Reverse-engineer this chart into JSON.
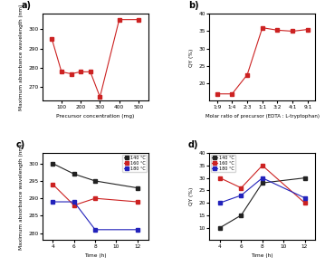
{
  "a": {
    "x": [
      50,
      100,
      150,
      200,
      250,
      300,
      400,
      500
    ],
    "y": [
      295,
      278,
      277,
      278,
      278,
      265,
      305,
      305
    ],
    "xlabel": "Precursor concentration (mg)",
    "ylabel": "Maximum absorbance wavelength (nm)",
    "xlim": [
      0,
      550
    ],
    "ylim": [
      263,
      308
    ],
    "yticks": [
      270,
      280,
      290,
      300
    ],
    "xticks": [
      100,
      200,
      300,
      400,
      500
    ]
  },
  "b": {
    "x": [
      0,
      1,
      2,
      3,
      4,
      5,
      6
    ],
    "y": [
      17,
      17,
      22.5,
      36,
      35.3,
      35.0,
      35.5
    ],
    "xlabel": "Molar ratio of precursor (EDTA : L-tryptophan)",
    "ylabel": "QY (%)",
    "xlim": [
      -0.5,
      6.5
    ],
    "ylim": [
      15,
      40
    ],
    "yticks": [
      20,
      25,
      30,
      35,
      40
    ],
    "xticks": [
      0,
      1,
      2,
      3,
      4,
      5,
      6
    ],
    "xticklabels": [
      "1:9",
      "1:4",
      "2:3",
      "1:1",
      "3:2",
      "4:1",
      "9:1"
    ]
  },
  "c": {
    "140": {
      "x": [
        4,
        6,
        8,
        12
      ],
      "y": [
        300,
        297,
        295,
        293
      ]
    },
    "160": {
      "x": [
        4,
        6,
        8,
        12
      ],
      "y": [
        294,
        288,
        290,
        289
      ]
    },
    "180": {
      "x": [
        4,
        6,
        8,
        12
      ],
      "y": [
        289,
        289,
        281,
        281
      ]
    },
    "xlabel": "Time (h)",
    "ylabel": "Maximum absorbance wavelength (nm)",
    "xlim": [
      3,
      13
    ],
    "ylim": [
      278,
      303
    ],
    "yticks": [
      280,
      285,
      290,
      295,
      300
    ],
    "xticks": [
      4,
      6,
      8,
      10,
      12
    ]
  },
  "d": {
    "140": {
      "x": [
        4,
        6,
        8,
        12
      ],
      "y": [
        10,
        15,
        28,
        30
      ]
    },
    "160": {
      "x": [
        4,
        6,
        8,
        12
      ],
      "y": [
        30,
        26,
        35,
        20
      ]
    },
    "180": {
      "x": [
        4,
        6,
        8,
        12
      ],
      "y": [
        20,
        23,
        30,
        22
      ]
    },
    "xlabel": "Time (h)",
    "ylabel": "QY (%)",
    "xlim": [
      3,
      13
    ],
    "ylim": [
      5,
      40
    ],
    "yticks": [
      10,
      15,
      20,
      25,
      30,
      35,
      40
    ],
    "xticks": [
      4,
      6,
      8,
      10,
      12
    ]
  },
  "colors": {
    "main": "#cc2222",
    "140": "#222222",
    "160": "#cc2222",
    "180": "#2222bb"
  },
  "marker": "s",
  "markersize": 2.5,
  "linewidth": 0.8
}
